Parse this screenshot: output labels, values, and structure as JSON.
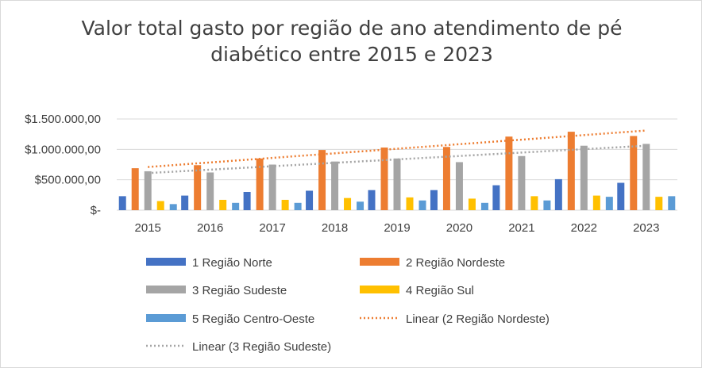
{
  "title": "Valor total gasto por região de ano atendimento de pé diabético entre 2015 e 2023",
  "chart_data": {
    "type": "bar",
    "title": "Valor total gasto por região de ano atendimento de pé diabético entre 2015 e 2023",
    "xlabel": "",
    "ylabel": "",
    "categories": [
      "2015",
      "2016",
      "2017",
      "2018",
      "2019",
      "2020",
      "2021",
      "2022",
      "2023"
    ],
    "ylim": [
      0,
      1500000
    ],
    "y_ticks": [
      0,
      500000,
      1000000,
      1500000
    ],
    "y_tick_labels": [
      "$-",
      "$500.000,00",
      "$1.000.000,00",
      "$1.500.000,00"
    ],
    "grid": true,
    "legend_position": "bottom",
    "series": [
      {
        "name": "1 Região Norte",
        "color": "#4472c4",
        "values": [
          230000,
          240000,
          300000,
          320000,
          330000,
          330000,
          410000,
          510000,
          450000
        ]
      },
      {
        "name": "2 Região Nordeste",
        "color": "#ed7d31",
        "values": [
          690000,
          740000,
          850000,
          990000,
          1030000,
          1040000,
          1210000,
          1290000,
          1220000
        ]
      },
      {
        "name": "3 Região Sudeste",
        "color": "#a5a5a5",
        "values": [
          640000,
          620000,
          750000,
          800000,
          850000,
          790000,
          890000,
          1060000,
          1090000
        ]
      },
      {
        "name": "4 Região Sul",
        "color": "#ffc000",
        "values": [
          150000,
          170000,
          170000,
          200000,
          210000,
          190000,
          230000,
          240000,
          220000
        ]
      },
      {
        "name": "5 Região Centro-Oeste",
        "color": "#5b9bd5",
        "values": [
          100000,
          120000,
          120000,
          140000,
          160000,
          120000,
          160000,
          220000,
          230000
        ]
      }
    ],
    "trendlines": [
      {
        "name": "Linear (2 Região Nordeste)",
        "series": "2 Região Nordeste",
        "color": "#ed7d31",
        "style": "dotted",
        "start": 710000,
        "end": 1310000
      },
      {
        "name": "Linear (3 Região Sudeste)",
        "series": "3 Região Sudeste",
        "color": "#a5a5a5",
        "style": "dotted",
        "start": 610000,
        "end": 1060000
      }
    ]
  }
}
